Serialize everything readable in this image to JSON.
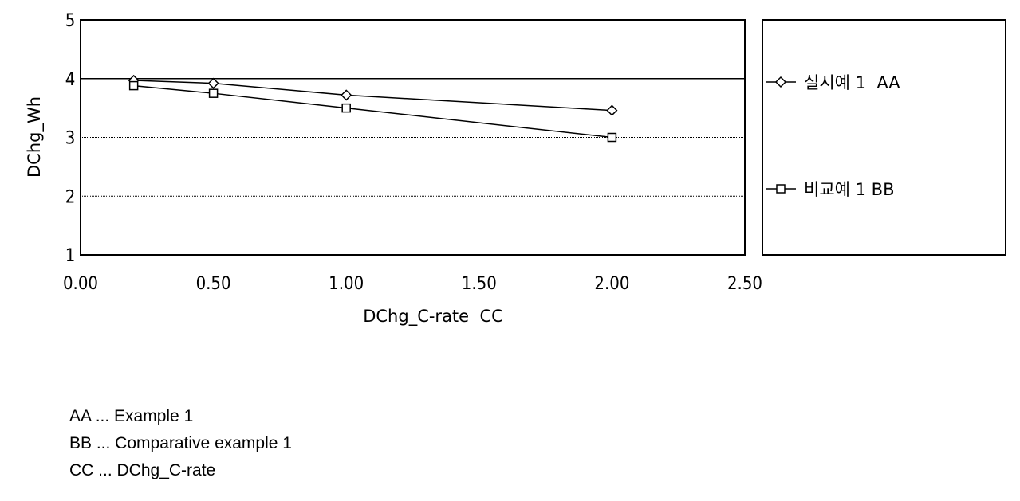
{
  "chart_data": {
    "type": "line",
    "xlabel": "DChg_C-rate  CC",
    "ylabel": "DChg_Wh",
    "xlim": [
      0,
      2.5
    ],
    "ylim": [
      1,
      5
    ],
    "x_ticks": [
      "0.00",
      "0.50",
      "1.00",
      "1.50",
      "2.00",
      "2.50"
    ],
    "y_ticks": [
      "1",
      "2",
      "3",
      "4",
      "5"
    ],
    "grid": "horizontal",
    "legend_position": "right",
    "series": [
      {
        "name": "실시예 1  AA",
        "marker": "diamond",
        "x": [
          0.2,
          0.5,
          1.0,
          2.0
        ],
        "y": [
          3.97,
          3.92,
          3.72,
          3.46
        ]
      },
      {
        "name": "비교예 1 BB",
        "marker": "square",
        "x": [
          0.2,
          0.5,
          1.0,
          2.0
        ],
        "y": [
          3.88,
          3.75,
          3.5,
          3.0
        ]
      }
    ]
  },
  "notes": [
    "AA ... Example 1",
    "BB ... Comparative example 1",
    "CC ... DChg_C-rate"
  ]
}
